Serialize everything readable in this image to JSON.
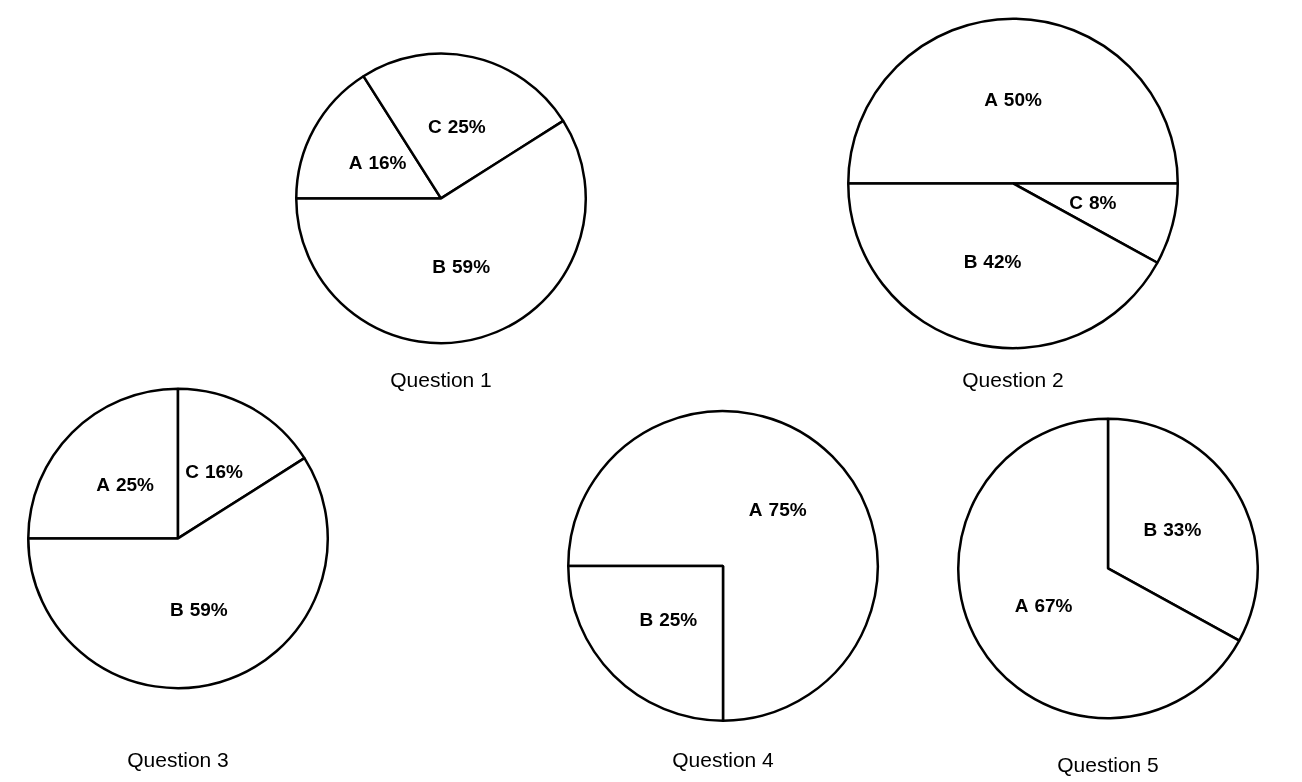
{
  "chart_data": [
    {
      "type": "pie",
      "title": "Question 1",
      "categories": [
        "A",
        "C",
        "B"
      ],
      "values": [
        16,
        25,
        59
      ],
      "colors": [
        "#ffffff",
        "#ffffff",
        "#ffffff"
      ],
      "value_labels": [
        "16%",
        "25%",
        "59%"
      ]
    },
    {
      "type": "pie",
      "title": "Question 2",
      "categories": [
        "A",
        "C",
        "B"
      ],
      "values": [
        50,
        8,
        42
      ],
      "colors": [
        "#ffffff",
        "#ffffff",
        "#ffffff"
      ],
      "value_labels": [
        "50%",
        "8%",
        "42%"
      ]
    },
    {
      "type": "pie",
      "title": "Question 3",
      "categories": [
        "A",
        "C",
        "B"
      ],
      "values": [
        25,
        16,
        59
      ],
      "colors": [
        "#ffffff",
        "#ffffff",
        "#ffffff"
      ],
      "value_labels": [
        "25%",
        "16%",
        "59%"
      ]
    },
    {
      "type": "pie",
      "title": "Question 4",
      "categories": [
        "A",
        "B"
      ],
      "values": [
        75,
        25
      ],
      "colors": [
        "#ffffff",
        "#ffffff"
      ],
      "value_labels": [
        "75%",
        "25%"
      ]
    },
    {
      "type": "pie",
      "title": "Question 5",
      "categories": [
        "B",
        "A"
      ],
      "values": [
        33,
        67
      ],
      "colors": [
        "#ffffff",
        "#ffffff"
      ],
      "value_labels": [
        "33%",
        "67%"
      ]
    }
  ]
}
